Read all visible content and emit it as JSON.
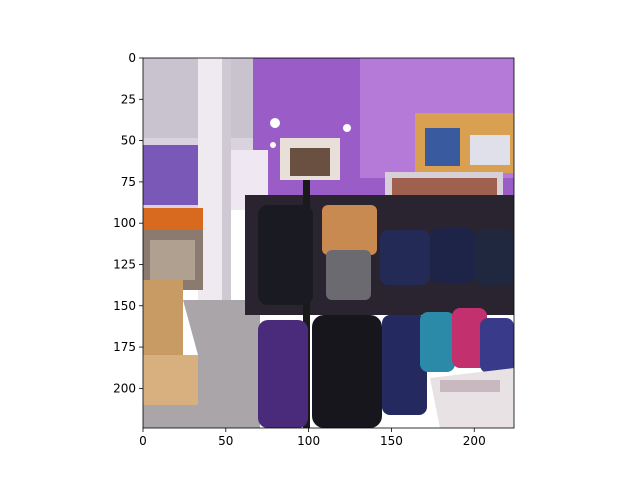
{
  "figure": {
    "image_description_tag": "store-backpack-display",
    "x_ticks": [
      "0",
      "50",
      "100",
      "150",
      "200"
    ],
    "y_ticks": [
      "0",
      "25",
      "50",
      "75",
      "100",
      "125",
      "150",
      "175",
      "200"
    ],
    "x_tick_values": [
      0,
      50,
      100,
      150,
      200
    ],
    "y_tick_values": [
      0,
      25,
      50,
      75,
      100,
      125,
      150,
      175,
      200
    ],
    "image_size": [
      224,
      224
    ],
    "colors": {
      "wall_purple": "#9a5cc6",
      "ceiling_white": "#e8e4ee",
      "floor_gray": "#a9a5a8",
      "backpack_black": "#1a1a22",
      "backpack_navy": "#232a55",
      "backpack_purple": "#4a2a7a",
      "backpack_pink": "#c2306e",
      "backpack_teal": "#2a8aa8",
      "box_tan": "#c89a64",
      "shelf_wood": "#d8a050"
    }
  }
}
